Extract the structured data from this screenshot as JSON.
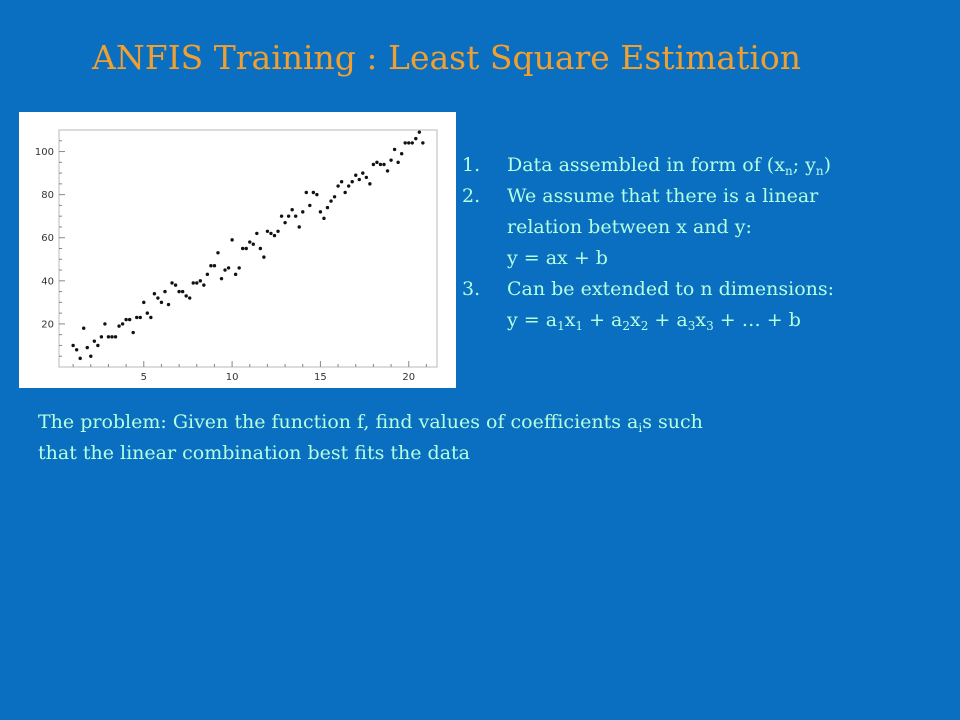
{
  "slide": {
    "title": "ANFIS Training : Least Square Estimation",
    "list": [
      {
        "num": "1.",
        "parts": [
          "Data assembled in form of (x",
          "n",
          "; y",
          "n",
          ")"
        ]
      },
      {
        "num": "2.",
        "lines": [
          "We assume that there is a linear",
          "relation between x and y:",
          "y = ax + b"
        ]
      },
      {
        "num": "3.",
        "line1": "Can be extended to n dimensions:",
        "parts": [
          "y = a",
          "1",
          "x",
          "1",
          " + a",
          "2",
          "x",
          "2",
          " + a",
          "3",
          "x",
          "3",
          " + … + b"
        ]
      }
    ],
    "problem": {
      "parts": [
        "The problem: Given the function  f,  find values of coefficients a",
        "i",
        "s such"
      ],
      "line2": "that  the linear combination best fits the data"
    },
    "colors": {
      "background": "#0a6fc0",
      "title": "#f0a030",
      "body_text": "#b4ffe0"
    }
  },
  "chart_data": {
    "type": "scatter",
    "title": "",
    "xlabel": "",
    "ylabel": "",
    "xlim": [
      0.2,
      21.6
    ],
    "ylim": [
      0,
      110
    ],
    "x_ticks": [
      5,
      10,
      15,
      20
    ],
    "y_ticks": [
      20,
      40,
      60,
      80,
      100
    ],
    "series": [
      {
        "points": [
          [
            1.0,
            10
          ],
          [
            1.2,
            8
          ],
          [
            1.4,
            4
          ],
          [
            1.6,
            18
          ],
          [
            1.8,
            9
          ],
          [
            2.0,
            5
          ],
          [
            2.2,
            12
          ],
          [
            2.4,
            10
          ],
          [
            2.6,
            14
          ],
          [
            2.8,
            20
          ],
          [
            3.0,
            14
          ],
          [
            3.2,
            14
          ],
          [
            3.4,
            14
          ],
          [
            3.6,
            19
          ],
          [
            3.8,
            20
          ],
          [
            4.0,
            22
          ],
          [
            4.2,
            22
          ],
          [
            4.4,
            16
          ],
          [
            4.6,
            23
          ],
          [
            4.8,
            23
          ],
          [
            5.0,
            30
          ],
          [
            5.2,
            25
          ],
          [
            5.4,
            23
          ],
          [
            5.6,
            34
          ],
          [
            5.8,
            32
          ],
          [
            6.0,
            30
          ],
          [
            6.2,
            35
          ],
          [
            6.4,
            29
          ],
          [
            6.6,
            39
          ],
          [
            6.8,
            38
          ],
          [
            7.0,
            35
          ],
          [
            7.2,
            35
          ],
          [
            7.4,
            33
          ],
          [
            7.6,
            32
          ],
          [
            7.8,
            39
          ],
          [
            8.0,
            39
          ],
          [
            8.2,
            40
          ],
          [
            8.4,
            38
          ],
          [
            8.6,
            43
          ],
          [
            8.8,
            47
          ],
          [
            9.0,
            47
          ],
          [
            9.2,
            53
          ],
          [
            9.4,
            41
          ],
          [
            9.6,
            45
          ],
          [
            9.8,
            46
          ],
          [
            10.0,
            59
          ],
          [
            10.2,
            43
          ],
          [
            10.4,
            46
          ],
          [
            10.6,
            55
          ],
          [
            10.8,
            55
          ],
          [
            11.0,
            58
          ],
          [
            11.2,
            57
          ],
          [
            11.4,
            62
          ],
          [
            11.6,
            55
          ],
          [
            11.8,
            51
          ],
          [
            12.0,
            63
          ],
          [
            12.2,
            62
          ],
          [
            12.4,
            61
          ],
          [
            12.6,
            63
          ],
          [
            12.8,
            70
          ],
          [
            13.0,
            67
          ],
          [
            13.2,
            70
          ],
          [
            13.4,
            73
          ],
          [
            13.6,
            70
          ],
          [
            13.8,
            65
          ],
          [
            14.0,
            72
          ],
          [
            14.2,
            81
          ],
          [
            14.4,
            75
          ],
          [
            14.6,
            81
          ],
          [
            14.8,
            80
          ],
          [
            15.0,
            72
          ],
          [
            15.2,
            69
          ],
          [
            15.4,
            74
          ],
          [
            15.6,
            77
          ],
          [
            15.8,
            79
          ],
          [
            16.0,
            84
          ],
          [
            16.2,
            86
          ],
          [
            16.4,
            81
          ],
          [
            16.6,
            84
          ],
          [
            16.8,
            86
          ],
          [
            17.0,
            89
          ],
          [
            17.2,
            87
          ],
          [
            17.4,
            90
          ],
          [
            17.6,
            88
          ],
          [
            17.8,
            85
          ],
          [
            18.0,
            94
          ],
          [
            18.2,
            95
          ],
          [
            18.4,
            94
          ],
          [
            18.6,
            94
          ],
          [
            18.8,
            91
          ],
          [
            19.0,
            96
          ],
          [
            19.2,
            101
          ],
          [
            19.4,
            95
          ],
          [
            19.6,
            99
          ],
          [
            19.8,
            104
          ],
          [
            20.0,
            104
          ],
          [
            20.2,
            104
          ],
          [
            20.4,
            106
          ],
          [
            20.6,
            109
          ],
          [
            20.8,
            104
          ]
        ]
      }
    ]
  }
}
